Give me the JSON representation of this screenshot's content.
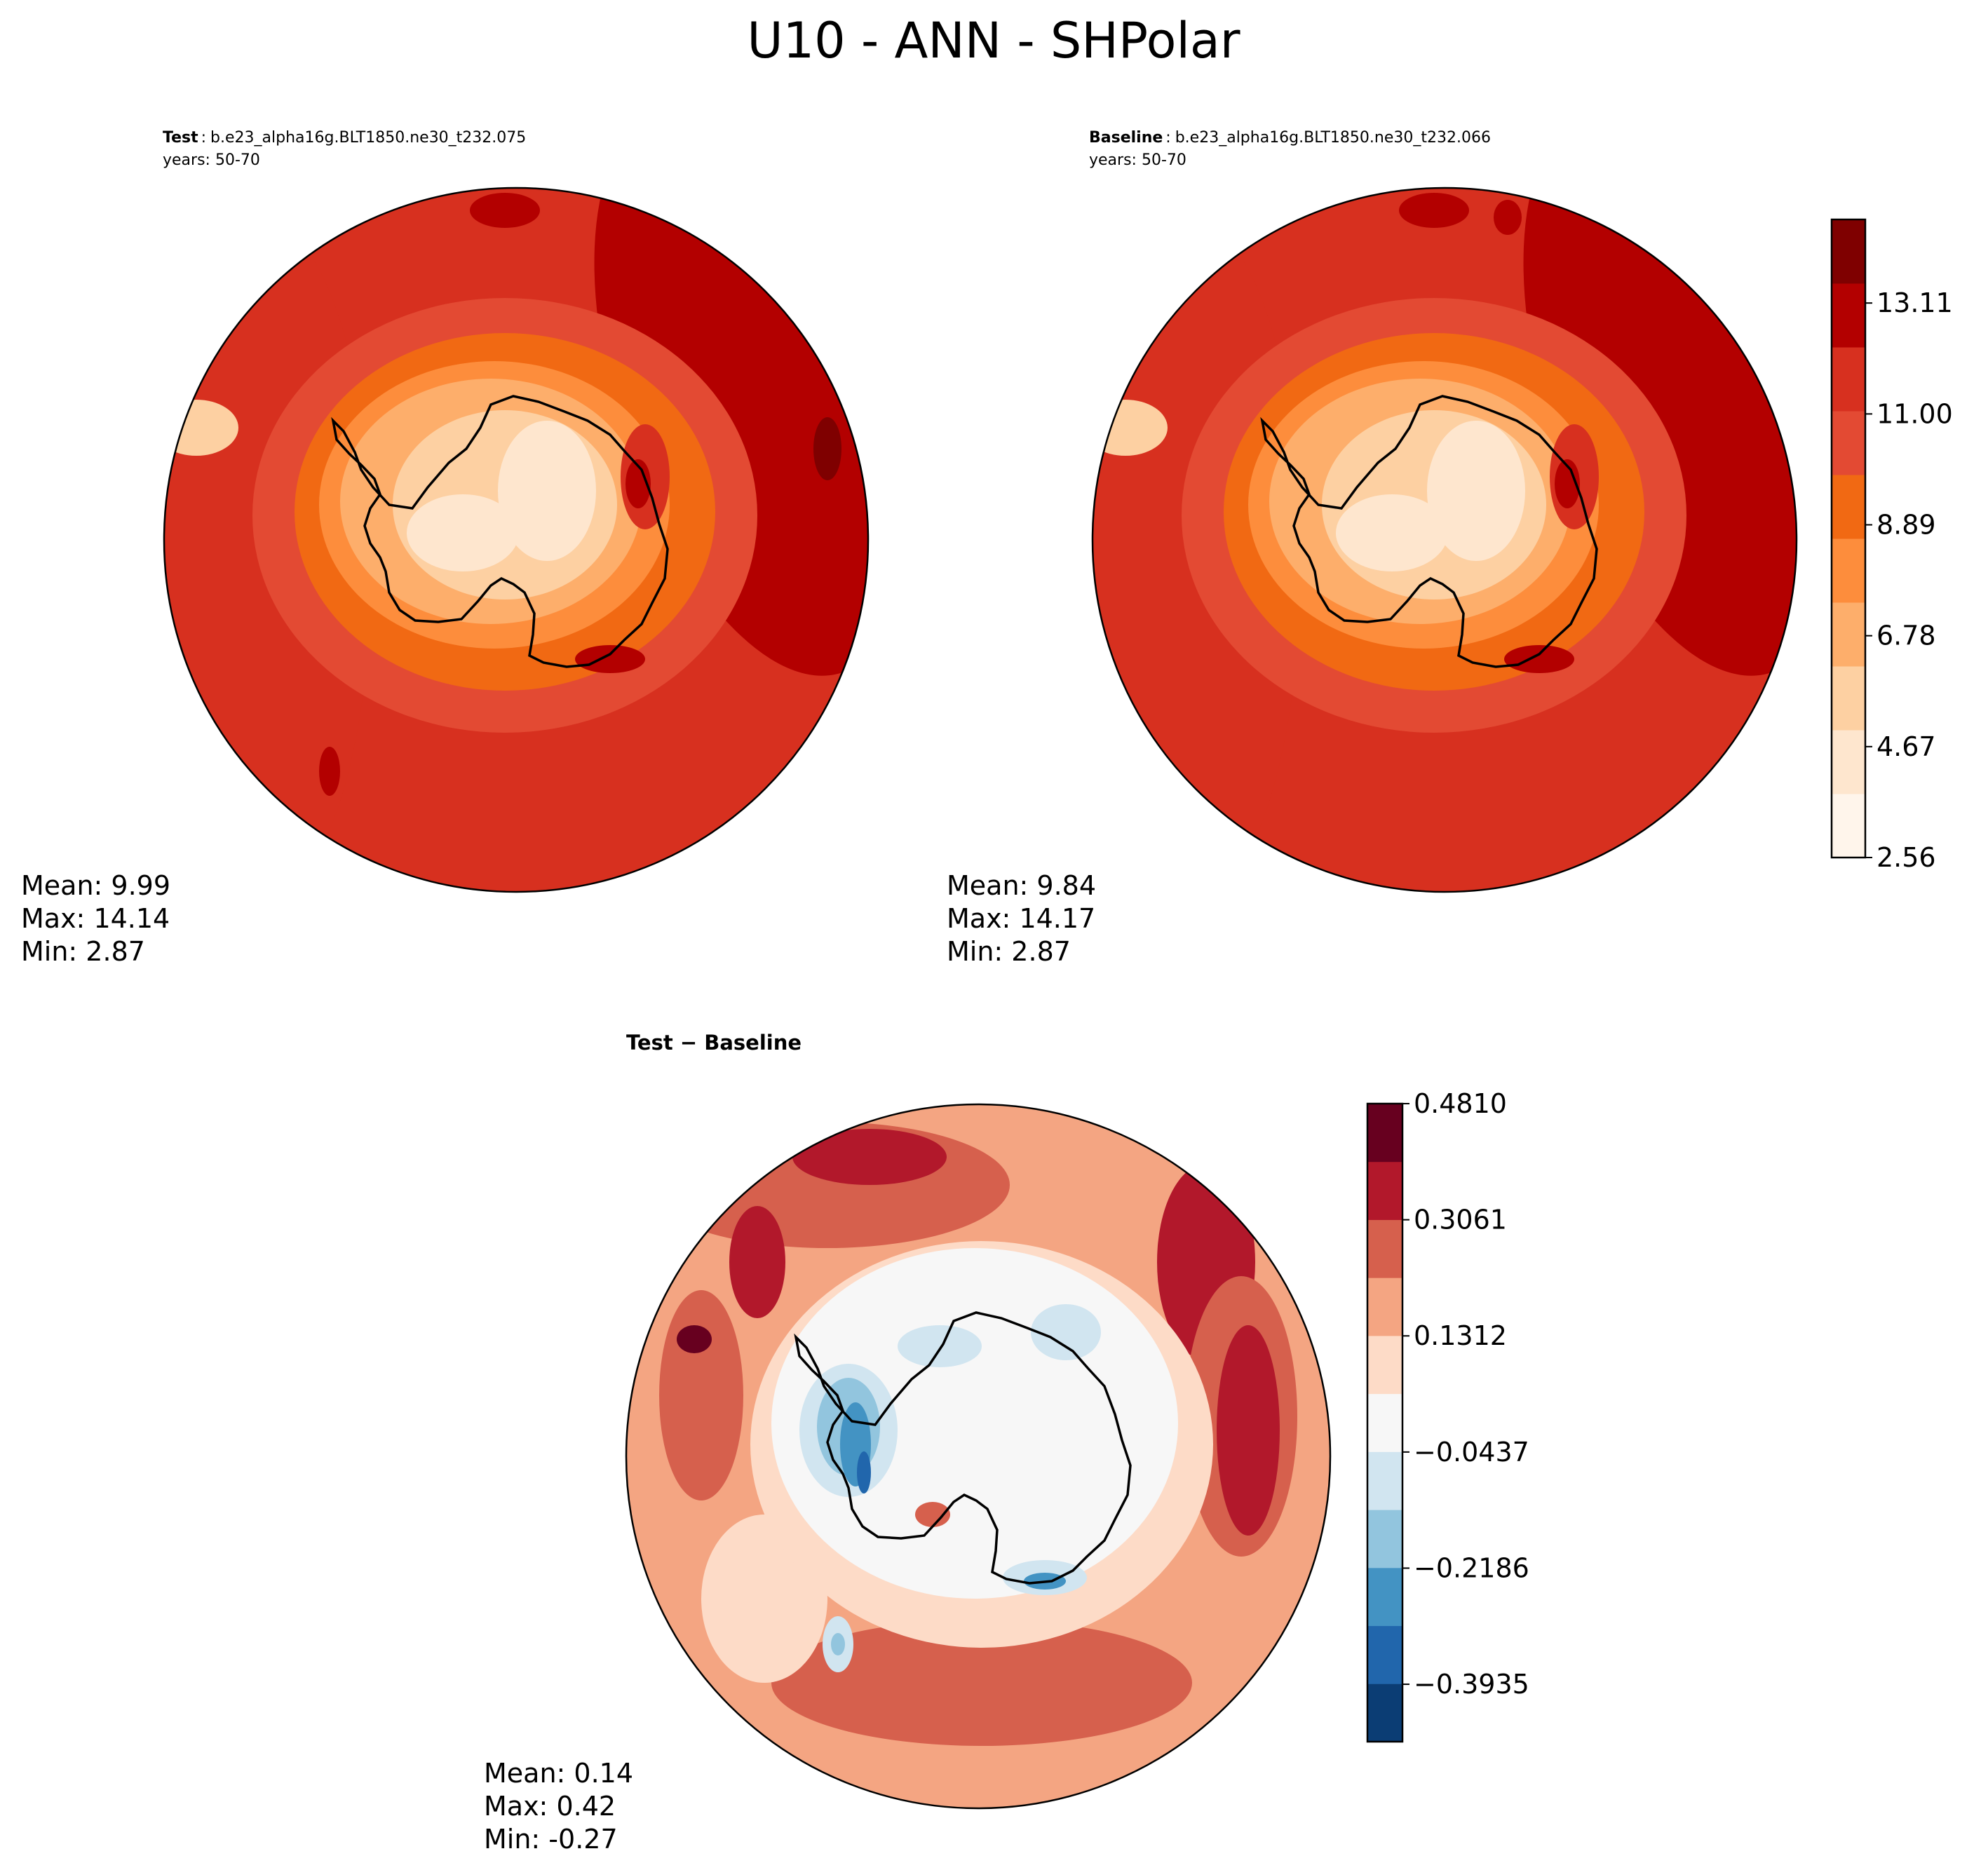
{
  "figure": {
    "title": "U10 - ANN - SHPolar"
  },
  "chart_data": [
    {
      "type": "heatmap",
      "projection": "south-polar-stereographic",
      "panel": "test",
      "label_bold": "Test",
      "case": "b.e23_alpha16g.BLT1850.ne30_t232.075",
      "years": "years: 50-70",
      "stats": {
        "mean": "Mean:  9.99",
        "max": "Max: 14.14",
        "min": "Min:  2.87"
      },
      "field_levels_approx": {
        "ocean_far": 12.5,
        "ocean_mid": 10.5,
        "ocean_near": 9.0,
        "coast": 7.0,
        "interior": 4.0
      },
      "colorbar_shared": true
    },
    {
      "type": "heatmap",
      "projection": "south-polar-stereographic",
      "panel": "baseline",
      "label_bold": "Baseline",
      "case": "b.e23_alpha16g.BLT1850.ne30_t232.066",
      "years": "years: 50-70",
      "stats": {
        "mean": "Mean:  9.84",
        "max": "Max: 14.17",
        "min": "Min:  2.87"
      },
      "colorbar": {
        "ticks": [
          "2.56",
          "4.67",
          "6.78",
          "8.89",
          "11.00",
          "13.11"
        ],
        "range": [
          2.56,
          14.7
        ],
        "colors": [
          "#fff5eb",
          "#fee6ce",
          "#fdd0a2",
          "#fdae6b",
          "#fd8d3c",
          "#f16913",
          "#e34a33",
          "#d7301f",
          "#b30000",
          "#7f0000"
        ]
      }
    },
    {
      "type": "heatmap",
      "projection": "south-polar-stereographic",
      "panel": "difference",
      "label_bold": "Test − Baseline",
      "stats": {
        "mean": "Mean:  0.14",
        "max": "Max:  0.42",
        "min": "Min: -0.27"
      },
      "colorbar": {
        "ticks": [
          "−0.3935",
          "−0.2186",
          "−0.0437",
          "0.1312",
          "0.3061",
          "0.4810"
        ],
        "range": [
          -0.48,
          0.481
        ],
        "colors": [
          "#0b3d74",
          "#2166ac",
          "#4393c3",
          "#92c5de",
          "#d1e5f0",
          "#f7f7f7",
          "#fddbc7",
          "#f4a582",
          "#d6604d",
          "#b2182b",
          "#67001f"
        ]
      }
    }
  ]
}
